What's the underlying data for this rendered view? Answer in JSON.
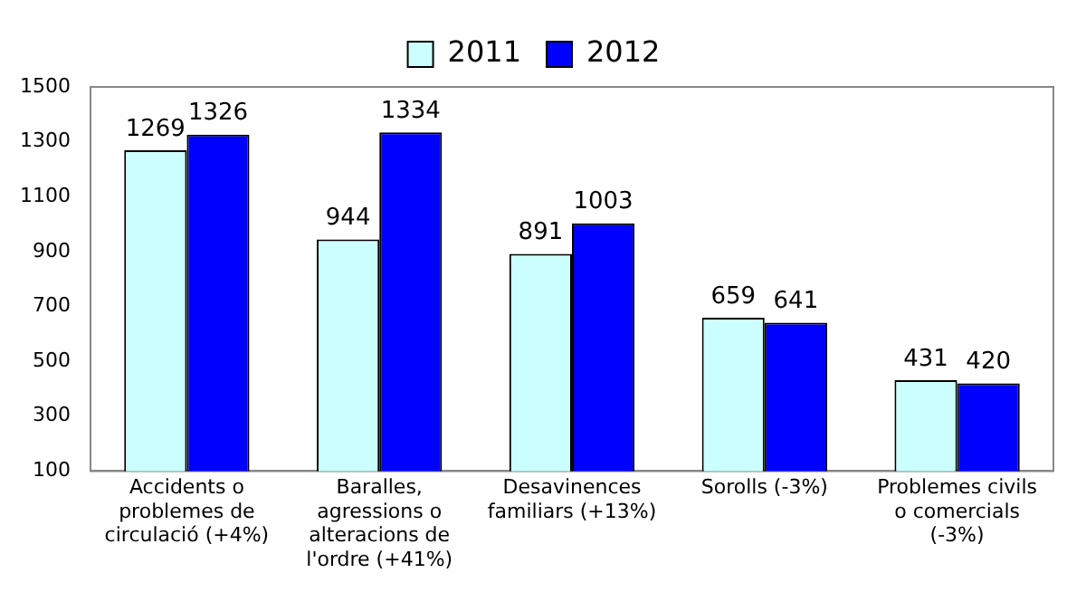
{
  "chart_data": {
    "type": "bar",
    "categories": [
      "Accidents o problemes de circulació (+4%)",
      "Baralles, agressions o alteracions de l'ordre (+41%)",
      "Desavinences familiars (+13%)",
      "Sorolls (-3%)",
      "Problemes civils o comercials (-3%)"
    ],
    "series": [
      {
        "name": "2011",
        "color": "#ccffff",
        "values": [
          1269,
          944,
          891,
          659,
          431
        ]
      },
      {
        "name": "2012",
        "color": "#0000ff",
        "values": [
          1326,
          1334,
          1003,
          641,
          420
        ]
      }
    ],
    "ylim": [
      100,
      1500
    ],
    "yticks": [
      100,
      300,
      500,
      700,
      900,
      1100,
      1300,
      1500
    ],
    "grid": false,
    "legend": "top",
    "data_labels": true
  }
}
